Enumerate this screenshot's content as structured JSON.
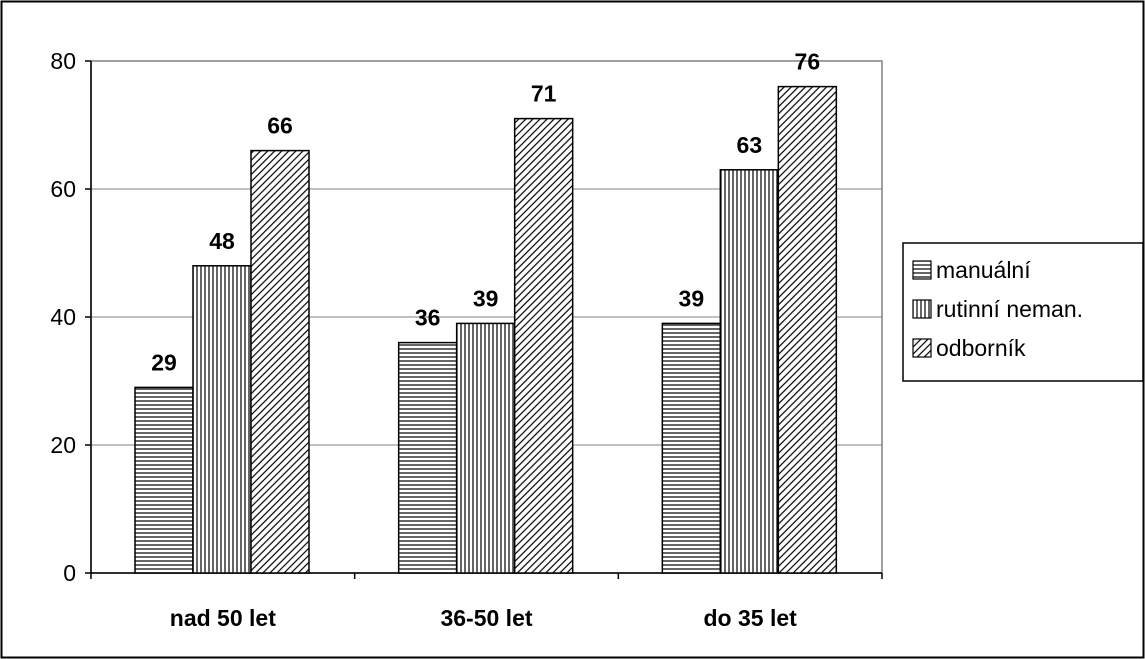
{
  "chart_data": {
    "type": "bar",
    "title": "",
    "xlabel": "",
    "ylabel": "",
    "categories": [
      "nad 50 let",
      "36-50 let",
      "do 35 let"
    ],
    "series": [
      {
        "name": "manuální",
        "values": [
          29,
          36,
          39
        ],
        "pattern": "horizontal-lines"
      },
      {
        "name": "rutinní neman.",
        "values": [
          48,
          39,
          63
        ],
        "pattern": "vertical-lines"
      },
      {
        "name": "odborník",
        "values": [
          66,
          71,
          76
        ],
        "pattern": "diagonal-lines"
      }
    ],
    "ylim": [
      0,
      80
    ],
    "yticks": [
      0,
      20,
      40,
      60,
      80
    ],
    "grid": true,
    "legend_position": "right",
    "data_labels": true,
    "colors": {
      "bar_fill": "#ffffff",
      "bar_pattern": "#000000",
      "frame": "#000000",
      "plot_border": "#808080",
      "gridline": "#808080"
    }
  }
}
